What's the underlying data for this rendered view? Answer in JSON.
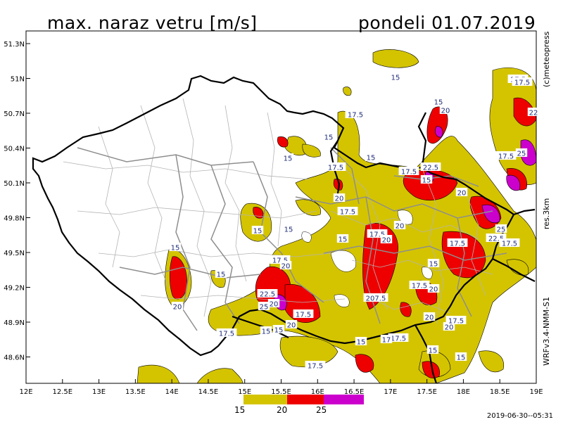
{
  "header": {
    "title_left": "max. naraz vetru [m/s]",
    "title_right": "pondeli 01.07.2019"
  },
  "side_labels": {
    "copyright": "(c)meteopress",
    "resolution": "res.3km",
    "model": "WRFv3.4-NMM-S1"
  },
  "axes": {
    "lat_labels": [
      "51.3N",
      "51N",
      "50.7N",
      "50.4N",
      "50.1N",
      "49.8N",
      "49.5N",
      "49.2N",
      "48.9N",
      "48.6N"
    ],
    "lon_labels": [
      "12E",
      "12.5E",
      "13E",
      "13.5E",
      "14E",
      "14.5E",
      "15E",
      "15.5E",
      "16E",
      "16.5E",
      "17E",
      "17.5E",
      "18E",
      "18.5E",
      "19E"
    ]
  },
  "legend": {
    "labels": [
      "15",
      "20",
      "25"
    ],
    "colors": [
      "#d4c400",
      "#ee0000",
      "#cc00cc"
    ]
  },
  "contour_labels": [
    {
      "text": "17.5"
    },
    {
      "text": "15"
    },
    {
      "text": "15"
    },
    {
      "text": "20"
    },
    {
      "text": "15"
    },
    {
      "text": "17.5"
    },
    {
      "text": "15"
    },
    {
      "text": "15"
    },
    {
      "text": "17.5"
    },
    {
      "text": "22.5"
    },
    {
      "text": "20"
    },
    {
      "text": "22"
    },
    {
      "text": "25"
    },
    {
      "text": "17.5"
    },
    {
      "text": "20"
    },
    {
      "text": "17.5"
    },
    {
      "text": "15"
    },
    {
      "text": "17.5"
    },
    {
      "text": "20"
    },
    {
      "text": "15"
    },
    {
      "text": "17.5"
    },
    {
      "text": "20"
    },
    {
      "text": "25"
    },
    {
      "text": "22.5"
    },
    {
      "text": "17.5"
    },
    {
      "text": "15"
    },
    {
      "text": "15"
    },
    {
      "text": "15"
    },
    {
      "text": "17.5"
    },
    {
      "text": "20"
    },
    {
      "text": "15"
    },
    {
      "text": "17.5"
    },
    {
      "text": "20"
    },
    {
      "text": "20"
    },
    {
      "text": "22.5"
    },
    {
      "text": "20"
    },
    {
      "text": "207.5"
    },
    {
      "text": "17.5"
    },
    {
      "text": "20"
    },
    {
      "text": "15"
    },
    {
      "text": "20"
    },
    {
      "text": "17.5"
    },
    {
      "text": "15"
    },
    {
      "text": "25"
    },
    {
      "text": "15"
    },
    {
      "text": "20"
    },
    {
      "text": "17.5"
    },
    {
      "text": "17.5"
    },
    {
      "text": "17.5"
    },
    {
      "text": "17"
    },
    {
      "text": "15"
    },
    {
      "text": "15"
    },
    {
      "text": "17.5"
    },
    {
      "text": "15"
    },
    {
      "text": "17.5"
    }
  ],
  "footer": {
    "timestamp": "2019-06-30--05:31"
  }
}
